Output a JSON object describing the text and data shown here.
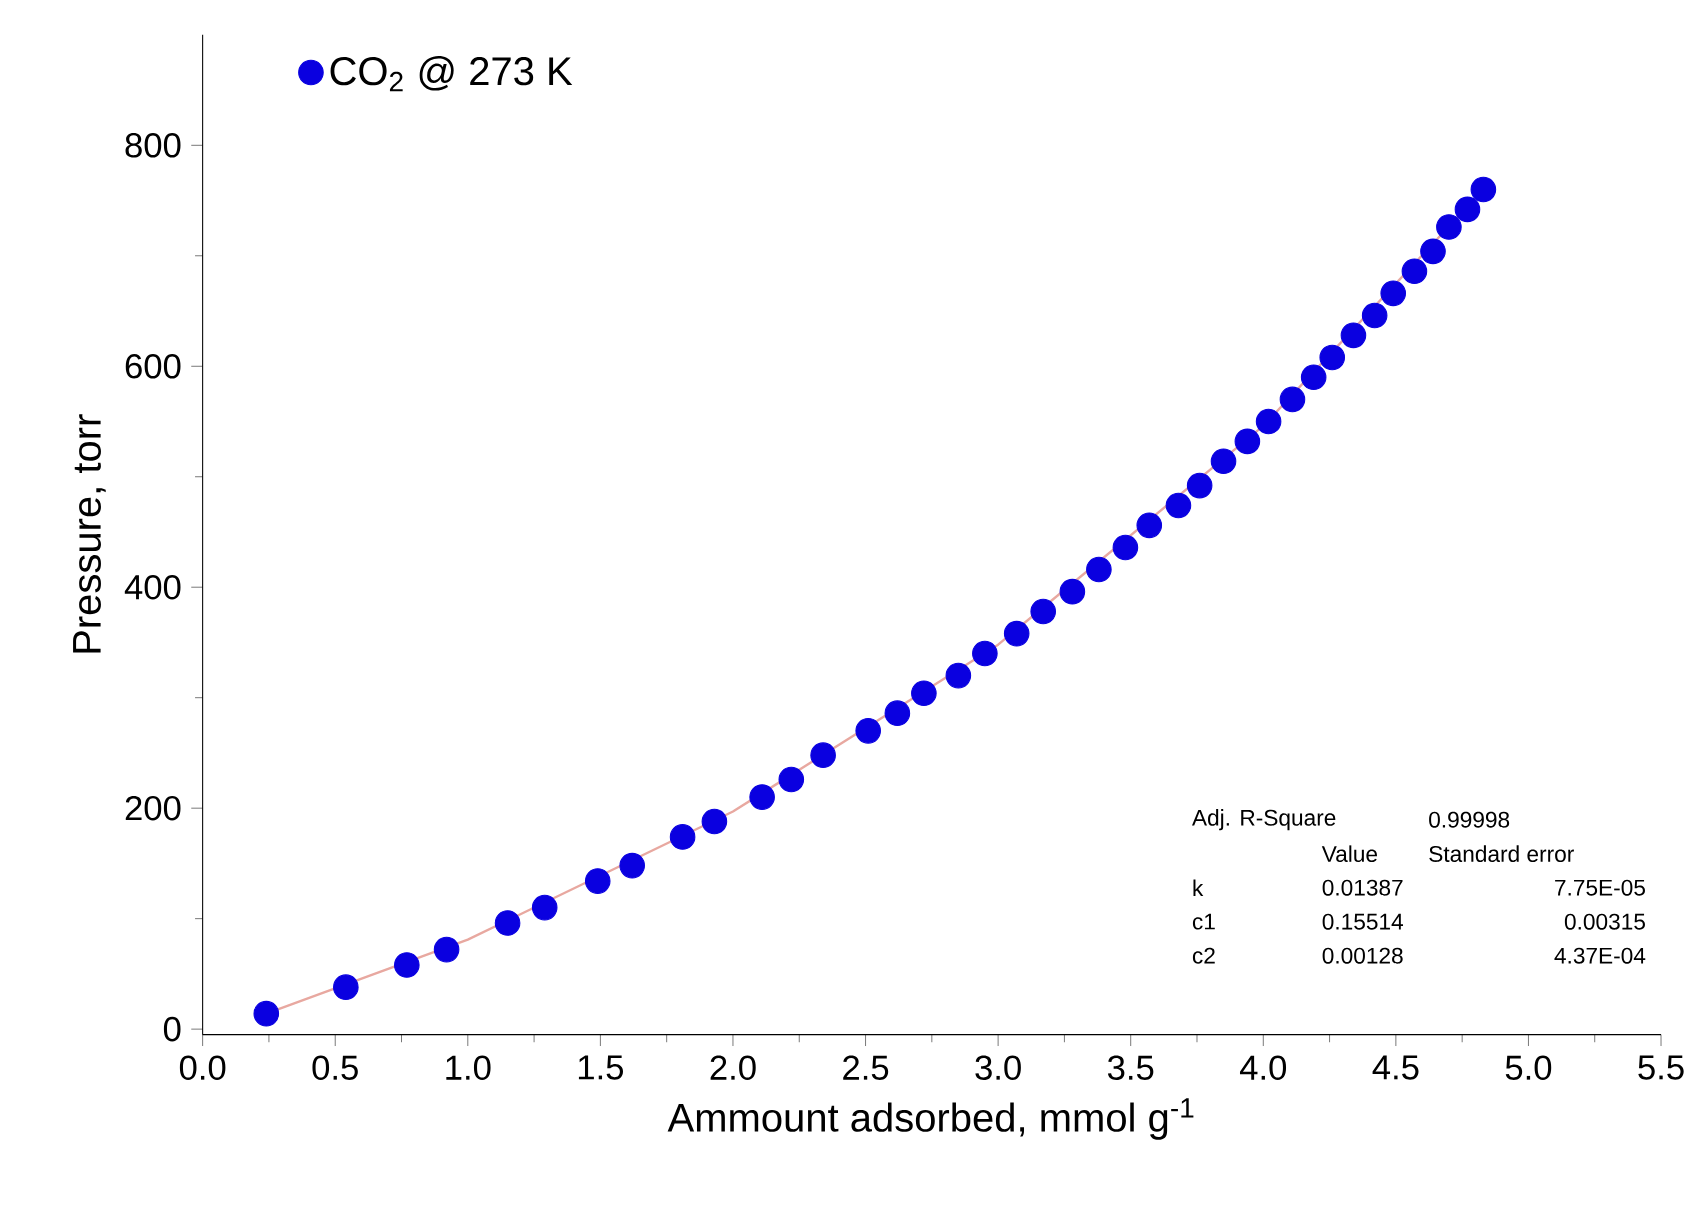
{
  "chart_data": {
    "type": "scatter",
    "xlabel": "Ammount adsorbed, mmol g$^{-1}$",
    "ylabel": "Pressure, torr",
    "xlim": [
      0,
      5.5
    ],
    "ylim": [
      -5,
      900
    ],
    "xticks": [
      {
        "value": 0,
        "label": "0.0"
      },
      {
        "value": 0.5,
        "label": "0.5"
      },
      {
        "value": 1,
        "label": "1.0"
      },
      {
        "value": 1.5,
        "label": "1.5"
      },
      {
        "value": 2,
        "label": "2.0"
      },
      {
        "value": 2.5,
        "label": "2.5"
      },
      {
        "value": 3,
        "label": "3.0"
      },
      {
        "value": 3.5,
        "label": "3.5"
      },
      {
        "value": 4,
        "label": "4.0"
      },
      {
        "value": 4.5,
        "label": "4.5"
      },
      {
        "value": 5,
        "label": "5.0"
      },
      {
        "value": 5.5,
        "label": "5.5"
      }
    ],
    "yticks": [
      0,
      200,
      400,
      600,
      800
    ],
    "grid": false,
    "legend": "top left",
    "series": [
      {
        "name": "CO$_{2}$ @ 273 K",
        "marker": "circle",
        "color": "#0a00e0",
        "x": [
          0.24,
          0.54,
          0.77,
          0.92,
          1.15,
          1.29,
          1.49,
          1.62,
          1.81,
          1.93,
          2.11,
          2.22,
          2.34,
          2.51,
          2.62,
          2.72,
          2.85,
          2.95,
          3.07,
          3.17,
          3.28,
          3.38,
          3.48,
          3.57,
          3.68,
          3.76,
          3.85,
          3.94,
          4.02,
          4.11,
          4.19,
          4.26,
          4.34,
          4.42,
          4.49,
          4.57,
          4.64,
          4.7,
          4.77,
          4.83
        ],
        "values": [
          14,
          38,
          58,
          72,
          96,
          110,
          134,
          148,
          174,
          188,
          210,
          226,
          248,
          270,
          286,
          304,
          320,
          340,
          358,
          378,
          396,
          416,
          436,
          456,
          474,
          492,
          514,
          532,
          550,
          570,
          590,
          608,
          628,
          646,
          666,
          686,
          704,
          726,
          742,
          760
        ]
      },
      {
        "type": "line",
        "marker": "none",
        "color": "#e8a8a0",
        "x": [
          0.24,
          1.0,
          2.0,
          3.0,
          4.0,
          4.83
        ],
        "values": [
          14,
          81,
          197,
          348,
          546,
          760
        ]
      }
    ],
    "annotations": [
      "Adj. R-Square",
      "0.99998",
      "Value",
      "Standard error",
      "k",
      "0.01387",
      "7.75E-05",
      "c1",
      "0.15514",
      "0.00315",
      "c2",
      "0.00128",
      "4.37E-04"
    ]
  }
}
